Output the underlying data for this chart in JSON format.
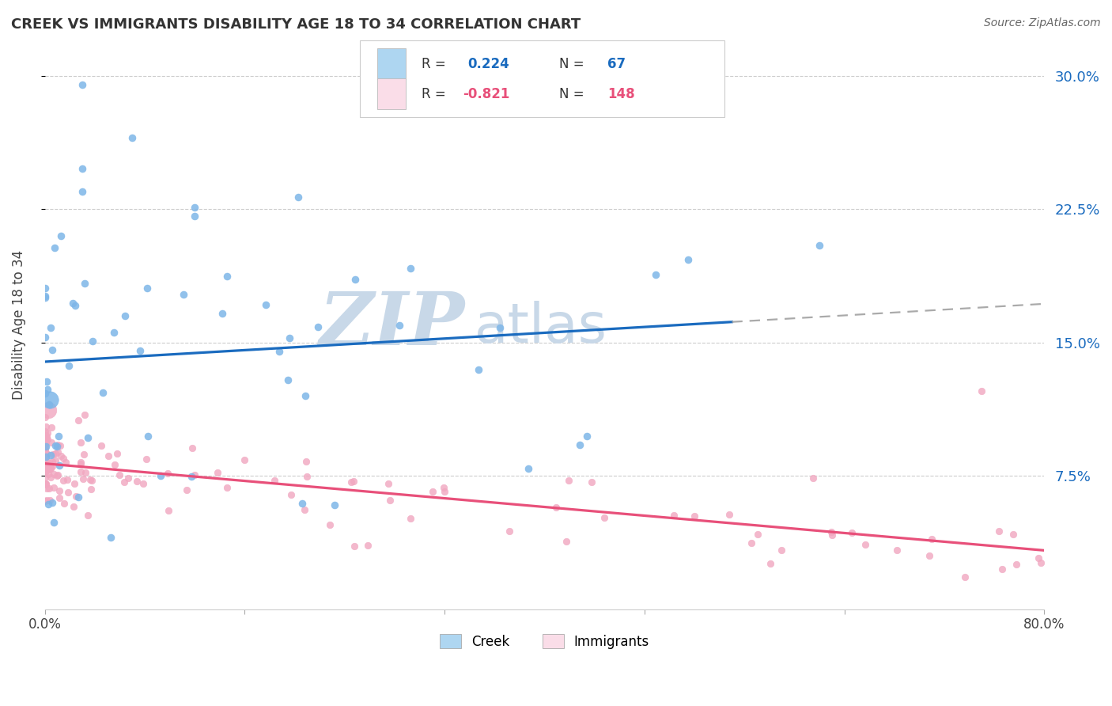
{
  "title": "CREEK VS IMMIGRANTS DISABILITY AGE 18 TO 34 CORRELATION CHART",
  "source": "Source: ZipAtlas.com",
  "ylabel": "Disability Age 18 to 34",
  "xlim": [
    0.0,
    0.8
  ],
  "ylim": [
    0.0,
    0.32
  ],
  "yticks": [
    0.075,
    0.15,
    0.225,
    0.3
  ],
  "ytick_labels": [
    "7.5%",
    "15.0%",
    "22.5%",
    "30.0%"
  ],
  "creek_R": 0.224,
  "creek_N": 67,
  "immigrants_R": -0.821,
  "immigrants_N": 148,
  "creek_color": "#7EB6E8",
  "creek_fill": "#AED6F1",
  "immigrants_color": "#F1A7C0",
  "immigrants_fill": "#FADDE8",
  "trend_creek_color": "#1A6BBF",
  "trend_immigrants_color": "#E8507A",
  "trend_extension_color": "#AAAAAA",
  "watermark_color": "#C8D8E8",
  "background_color": "#FFFFFF"
}
